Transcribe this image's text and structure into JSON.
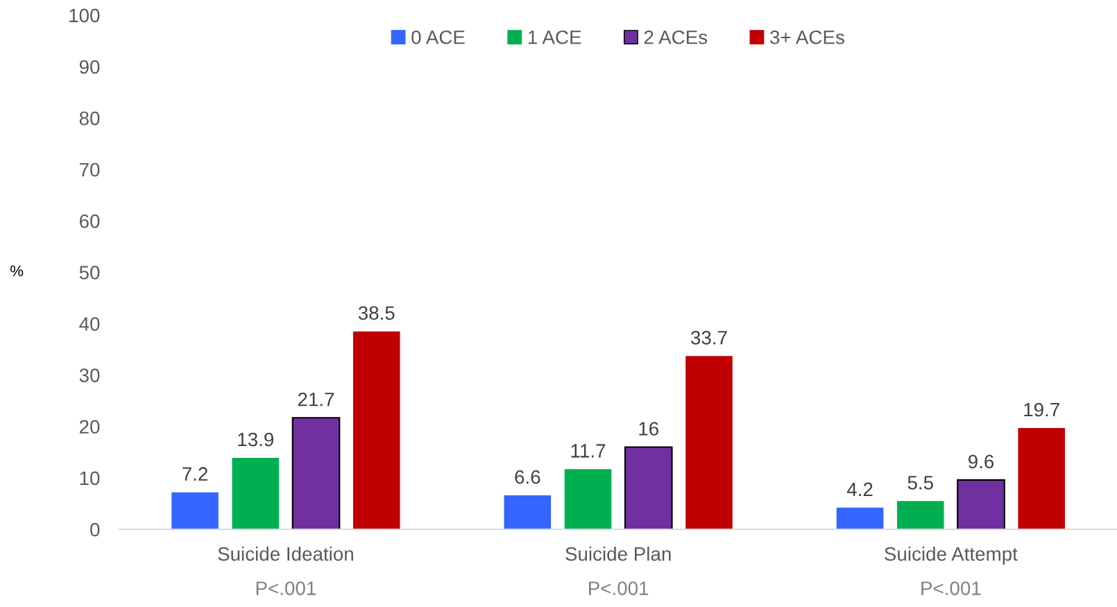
{
  "chart_data": {
    "type": "bar",
    "ylabel": "%",
    "categories": [
      "Suicide Ideation",
      "Suicide Plan",
      "Suicide Attempt"
    ],
    "series": [
      {
        "name": "0 ACE",
        "color": "#3366ff",
        "values": [
          7.2,
          6.6,
          4.2
        ]
      },
      {
        "name": "1 ACE",
        "color": "#00b050",
        "values": [
          13.9,
          11.7,
          5.5
        ]
      },
      {
        "name": "2 ACEs",
        "color": "#7030a0",
        "values": [
          21.7,
          16,
          9.6
        ]
      },
      {
        "name": "3+ ACEs",
        "color": "#c00000",
        "values": [
          38.5,
          33.7,
          19.7
        ]
      }
    ],
    "ylim": [
      0,
      100
    ],
    "yticks": [
      0,
      10,
      20,
      30,
      40,
      50,
      60,
      70,
      80,
      90,
      100
    ],
    "grid": false,
    "legend": "top",
    "data_labels": true,
    "annotations": [
      "P<.001",
      "P<.001",
      "P<.001"
    ]
  }
}
